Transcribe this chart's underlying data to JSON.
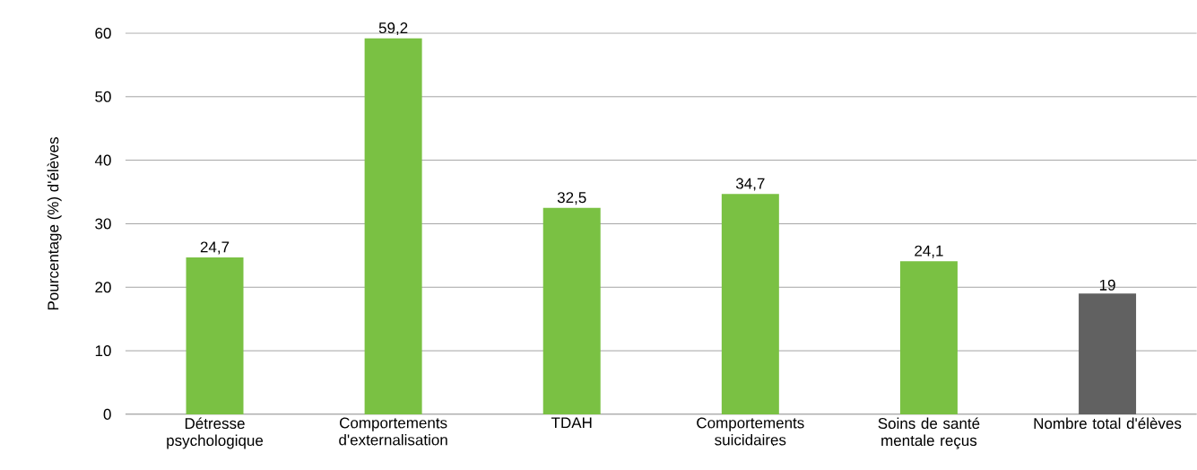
{
  "chart_data": {
    "type": "bar",
    "ylabel": "Pourcentage (%) d'élèves",
    "categories": [
      "Détresse psychologique",
      "Comportements d'externalisation",
      "TDAH",
      "Comportements suicidaires",
      "Soins de santé mentale reçus",
      "Nombre total d'élèves"
    ],
    "values": [
      24.7,
      59.2,
      32.5,
      34.7,
      24.1,
      19
    ],
    "colors": [
      "#7ac143",
      "#7ac143",
      "#7ac143",
      "#7ac143",
      "#7ac143",
      "#616161"
    ],
    "value_labels": [
      "24,7",
      "59,2",
      "32,5",
      "34,7",
      "24,1",
      "19"
    ],
    "ylim": [
      0,
      60
    ],
    "yticks": [
      0,
      10,
      20,
      30,
      40,
      50,
      60
    ],
    "grid": "y"
  }
}
